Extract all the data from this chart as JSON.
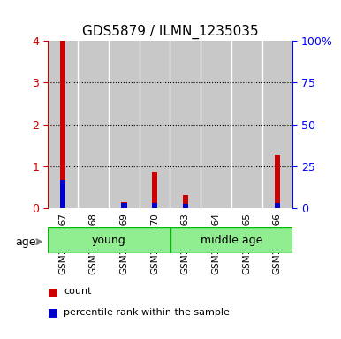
{
  "title": "GDS5879 / ILMN_1235035",
  "samples": [
    "GSM1847067",
    "GSM1847068",
    "GSM1847069",
    "GSM1847070",
    "GSM1847063",
    "GSM1847064",
    "GSM1847065",
    "GSM1847066"
  ],
  "red_values": [
    4.0,
    0.0,
    0.15,
    0.88,
    0.32,
    0.0,
    0.0,
    1.28
  ],
  "blue_values": [
    0.68,
    0.0,
    0.12,
    0.12,
    0.1,
    0.0,
    0.0,
    0.12
  ],
  "ylim_left": [
    0,
    4
  ],
  "ylim_right": [
    0,
    100
  ],
  "yticks_left": [
    0,
    1,
    2,
    3,
    4
  ],
  "yticks_right": [
    0,
    25,
    50,
    75,
    100
  ],
  "ytick_labels_right": [
    "0",
    "25",
    "50",
    "75",
    "100%"
  ],
  "groups": [
    {
      "label": "young",
      "start": 0,
      "end": 4,
      "color": "#90EE90"
    },
    {
      "label": "middle age",
      "start": 4,
      "end": 8,
      "color": "#90EE90"
    }
  ],
  "age_label": "age",
  "legend_items": [
    {
      "color": "#CC0000",
      "label": "count"
    },
    {
      "color": "#0000CC",
      "label": "percentile rank within the sample"
    }
  ],
  "red_color": "#CC0000",
  "blue_color": "#0000CC",
  "bar_bg_color": "#C8C8C8",
  "group_border_color": "#00BB00",
  "xlabel_color": "#000000",
  "bar_width": 0.5
}
